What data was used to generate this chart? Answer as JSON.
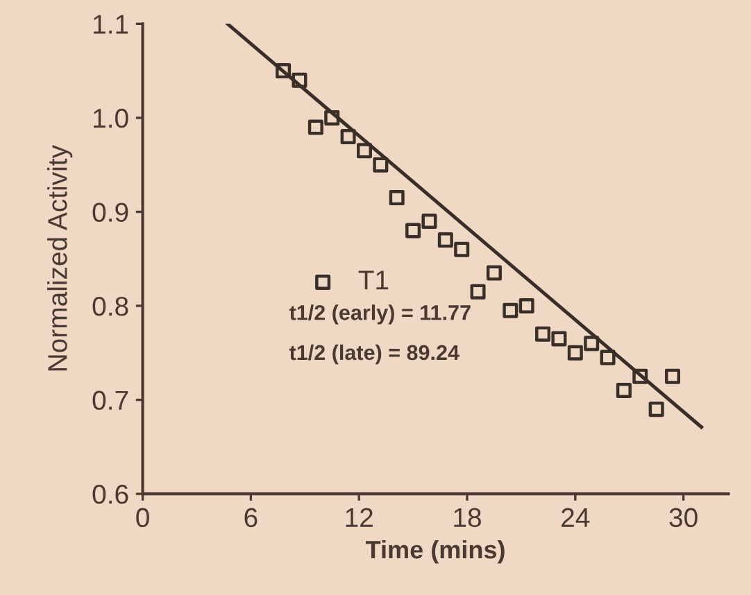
{
  "chart_data": {
    "type": "scatter",
    "xlabel": "Time (mins)",
    "ylabel": "Normalized Activity",
    "xlim": [
      0,
      32.5
    ],
    "ylim": [
      0.6,
      1.1
    ],
    "xticks": [
      0,
      6,
      12,
      18,
      24,
      30
    ],
    "yticks": [
      {
        "value": 0.6,
        "label": "0.6"
      },
      {
        "value": 0.7,
        "label": "0.7"
      },
      {
        "value": 0.8,
        "label": "0.8"
      },
      {
        "value": 0.9,
        "label": "0.9"
      },
      {
        "value": 1.0,
        "label": "1.0"
      },
      {
        "value": 1.1,
        "label": "1.1"
      }
    ],
    "x": [
      7.8,
      8.7,
      9.6,
      10.5,
      11.4,
      12.3,
      13.2,
      14.1,
      15.0,
      15.9,
      16.8,
      17.7,
      18.6,
      19.5,
      20.4,
      21.3,
      22.2,
      23.1,
      24.0,
      24.9,
      25.8,
      26.7,
      27.6,
      28.5,
      29.4
    ],
    "series": [
      {
        "name": "T1",
        "color": "#3a2e28",
        "marker": "square",
        "values": [
          1.05,
          1.04,
          0.99,
          1.0,
          0.98,
          0.965,
          0.95,
          0.915,
          0.88,
          0.89,
          0.87,
          0.86,
          0.815,
          0.835,
          0.795,
          0.8,
          0.77,
          0.765,
          0.75,
          0.76,
          0.745,
          0.71,
          0.725,
          0.69,
          0.725
        ]
      },
      {
        "type": "line",
        "color": "#3a2e28",
        "x": [
          4.7,
          31.0
        ],
        "values": [
          1.1,
          0.671
        ]
      }
    ],
    "legend": "center left",
    "annotations": [
      "t1/2 (early) = 11.77",
      "t1/2 (late) = 89.24"
    ]
  }
}
